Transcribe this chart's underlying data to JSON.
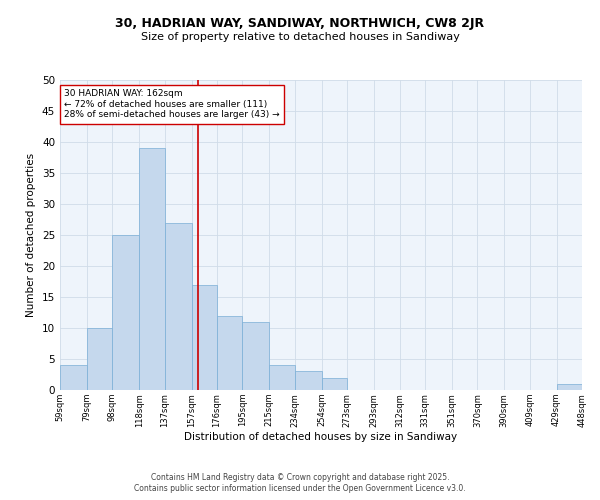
{
  "title1": "30, HADRIAN WAY, SANDIWAY, NORTHWICH, CW8 2JR",
  "title2": "Size of property relative to detached houses in Sandiway",
  "bar_heights": [
    4,
    10,
    25,
    39,
    27,
    17,
    12,
    11,
    4,
    3,
    2,
    0,
    0,
    0,
    0,
    0,
    0,
    0,
    0,
    1
  ],
  "bin_edges": [
    59,
    79,
    98,
    118,
    137,
    157,
    176,
    195,
    215,
    234,
    254,
    273,
    293,
    312,
    331,
    351,
    370,
    390,
    409,
    429,
    448
  ],
  "bar_color": "#c5d8ed",
  "bar_edge_color": "#7aaed6",
  "vline_x": 162,
  "vline_color": "#cc0000",
  "xlabel": "Distribution of detached houses by size in Sandiway",
  "ylabel": "Number of detached properties",
  "ylim": [
    0,
    50
  ],
  "yticks": [
    0,
    5,
    10,
    15,
    20,
    25,
    30,
    35,
    40,
    45,
    50
  ],
  "xtick_labels": [
    "59sqm",
    "79sqm",
    "98sqm",
    "118sqm",
    "137sqm",
    "157sqm",
    "176sqm",
    "195sqm",
    "215sqm",
    "234sqm",
    "254sqm",
    "273sqm",
    "293sqm",
    "312sqm",
    "331sqm",
    "351sqm",
    "370sqm",
    "390sqm",
    "409sqm",
    "429sqm",
    "448sqm"
  ],
  "annotation_title": "30 HADRIAN WAY: 162sqm",
  "annotation_line1": "← 72% of detached houses are smaller (111)",
  "annotation_line2": "28% of semi-detached houses are larger (43) →",
  "annotation_box_color": "#ffffff",
  "annotation_box_edge": "#cc0000",
  "grid_color": "#d0dce8",
  "bg_color": "#eef4fb",
  "footer1": "Contains HM Land Registry data © Crown copyright and database right 2025.",
  "footer2": "Contains public sector information licensed under the Open Government Licence v3.0."
}
